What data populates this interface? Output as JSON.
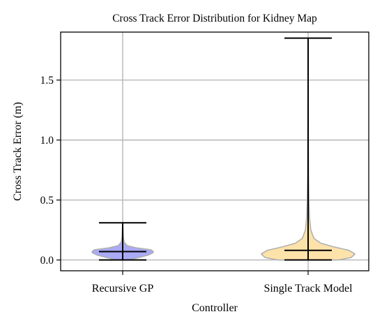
{
  "chart_data": {
    "type": "violin",
    "title": "Cross Track Error Distribution for Kidney Map",
    "xlabel": "Controller",
    "ylabel": "Cross Track Error (m)",
    "categories": [
      "Recursive GP",
      "Single Track Model"
    ],
    "ylim": [
      -0.09,
      1.9
    ],
    "yticks": [
      {
        "value": 0.0,
        "label": "0.0"
      },
      {
        "value": 0.5,
        "label": "0.5"
      },
      {
        "value": 1.0,
        "label": "1.0"
      },
      {
        "value": 1.5,
        "label": "1.5"
      }
    ],
    "grid": true,
    "violins": [
      {
        "category": "Recursive GP",
        "fill_color": "#aaaaf6",
        "edge_color": "#b0b0b0",
        "min": 0.0,
        "median": 0.07,
        "max": 0.31,
        "density": [
          [
            0.0,
            0.12
          ],
          [
            0.02,
            0.33
          ],
          [
            0.04,
            0.52
          ],
          [
            0.06,
            0.62
          ],
          [
            0.07,
            0.63
          ],
          [
            0.085,
            0.58
          ],
          [
            0.1,
            0.3
          ],
          [
            0.12,
            0.09
          ],
          [
            0.15,
            0.03
          ],
          [
            0.2,
            0.012
          ],
          [
            0.26,
            0.006
          ],
          [
            0.31,
            0.0
          ]
        ]
      },
      {
        "category": "Single Track Model",
        "fill_color": "#fde2aa",
        "edge_color": "#b0b0b0",
        "min": 0.0,
        "median": 0.08,
        "max": 1.85,
        "density": [
          [
            0.0,
            0.62
          ],
          [
            0.02,
            0.88
          ],
          [
            0.05,
            0.96
          ],
          [
            0.08,
            0.84
          ],
          [
            0.11,
            0.52
          ],
          [
            0.14,
            0.26
          ],
          [
            0.18,
            0.12
          ],
          [
            0.25,
            0.055
          ],
          [
            0.35,
            0.03
          ],
          [
            0.5,
            0.018
          ],
          [
            0.7,
            0.01
          ],
          [
            1.0,
            0.006
          ],
          [
            1.4,
            0.003
          ],
          [
            1.85,
            0.0
          ]
        ]
      }
    ]
  }
}
